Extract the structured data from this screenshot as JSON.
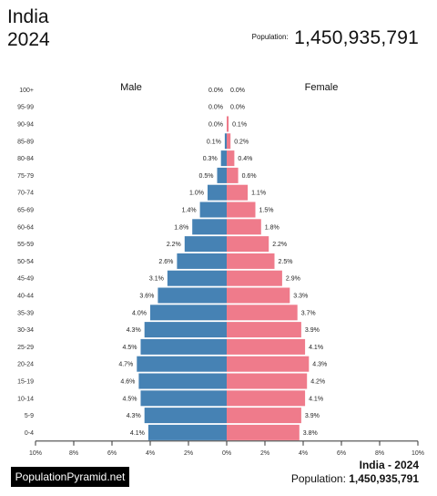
{
  "header": {
    "country": "India",
    "year": "2024",
    "population_label": "Population:",
    "population_value": "1,450,935,791"
  },
  "footer": {
    "brand": "PopulationPyramid.net",
    "title": "India - 2024",
    "population_label": "Population:",
    "population_value": "1,450,935,791"
  },
  "colors": {
    "male": "#4682b4",
    "female": "#ef7b8b",
    "axis": "#333333"
  },
  "chart_data": {
    "type": "bar",
    "orientation": "horizontal-pyramid",
    "categories": [
      "100+",
      "95-99",
      "90-94",
      "85-89",
      "80-84",
      "75-79",
      "70-74",
      "65-69",
      "60-64",
      "55-59",
      "50-54",
      "45-49",
      "40-44",
      "35-39",
      "30-34",
      "25-29",
      "20-24",
      "15-19",
      "10-14",
      "5-9",
      "0-4"
    ],
    "series": [
      {
        "name": "Male",
        "values": [
          0.0,
          0.0,
          0.0,
          0.1,
          0.3,
          0.5,
          1.0,
          1.4,
          1.8,
          2.2,
          2.6,
          3.1,
          3.6,
          4.0,
          4.3,
          4.5,
          4.7,
          4.6,
          4.5,
          4.3,
          4.1
        ],
        "labels": [
          "0.0%",
          "0.0%",
          "0.0%",
          "0.1%",
          "0.3%",
          "0.5%",
          "1.0%",
          "1.4%",
          "1.8%",
          "2.2%",
          "2.6%",
          "3.1%",
          "3.6%",
          "4.0%",
          "4.3%",
          "4.5%",
          "4.7%",
          "4.6%",
          "4.5%",
          "4.3%",
          "4.1%"
        ]
      },
      {
        "name": "Female",
        "values": [
          0.0,
          0.0,
          0.1,
          0.2,
          0.4,
          0.6,
          1.1,
          1.5,
          1.8,
          2.2,
          2.5,
          2.9,
          3.3,
          3.7,
          3.9,
          4.1,
          4.3,
          4.2,
          4.1,
          3.9,
          3.8
        ],
        "labels": [
          "0.0%",
          "0.0%",
          "0.1%",
          "0.2%",
          "0.4%",
          "0.6%",
          "1.1%",
          "1.5%",
          "1.8%",
          "2.2%",
          "2.5%",
          "2.9%",
          "3.3%",
          "3.7%",
          "3.9%",
          "4.1%",
          "4.3%",
          "4.2%",
          "4.1%",
          "3.9%",
          "3.8%"
        ]
      }
    ],
    "xlim": [
      -10,
      10
    ],
    "xticks": [
      -10,
      -8,
      -6,
      -4,
      -2,
      0,
      2,
      4,
      6,
      8,
      10
    ],
    "xtick_labels": [
      "10%",
      "8%",
      "6%",
      "4%",
      "2%",
      "0%",
      "2%",
      "4%",
      "6%",
      "8%",
      "10%"
    ],
    "grid": false
  }
}
